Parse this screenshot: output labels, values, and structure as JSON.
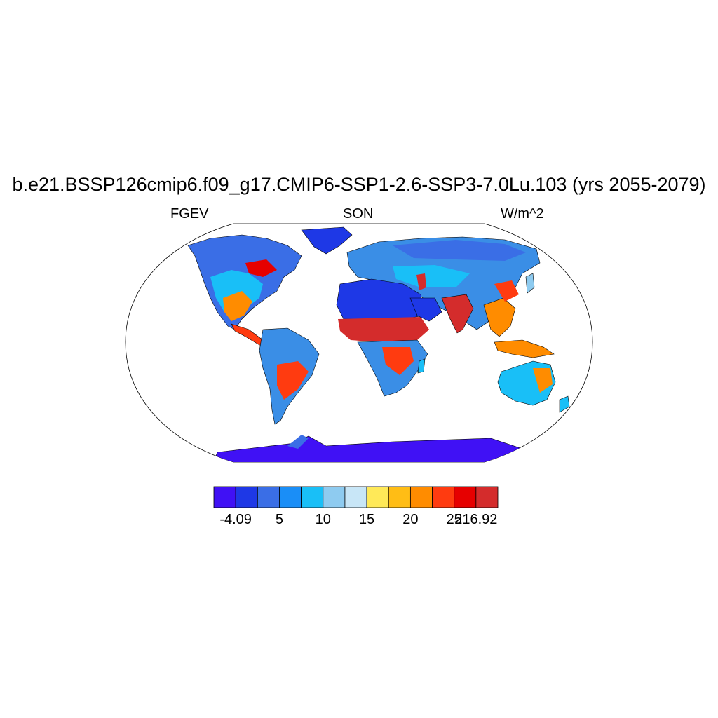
{
  "title": "b.e21.BSSP126cmip6.f09_g17.CMIP6-SSP1-2.6-SSP3-7.0Lu.103 (yrs 2055-2079)",
  "subtitle_left": "FGEV",
  "subtitle_center": "SON",
  "subtitle_right": "W/m^2",
  "colorbar": {
    "colors": [
      "#4011f5",
      "#1e38e6",
      "#3a6ee6",
      "#1a8ef7",
      "#19bff7",
      "#8ecbf0",
      "#c8e6f7",
      "#ffe958",
      "#ffbd15",
      "#ff8c00",
      "#ff3b10",
      "#e60000",
      "#d42c2c"
    ],
    "labels": [
      "-4.09",
      "",
      "5",
      "",
      "10",
      "",
      "15",
      "",
      "20",
      "",
      "25",
      "216.92"
    ]
  },
  "map": {
    "projection": "Robinson",
    "ocean_color": "#ffffff",
    "land_default_color": "#3a8ee6"
  }
}
